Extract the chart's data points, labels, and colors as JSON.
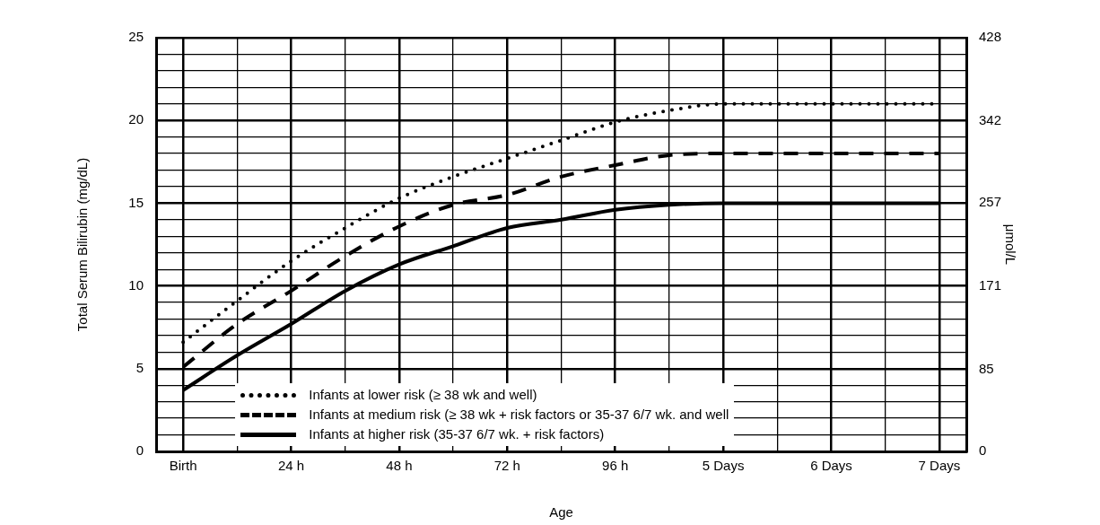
{
  "chart_data": {
    "type": "line",
    "xlabel": "Age",
    "ylabel": "Total Serum Bilirubin (mg/dL)",
    "y2label": "μmol/L",
    "categories": [
      "Birth",
      null,
      "24 h",
      null,
      "48 h",
      null,
      "72 h",
      null,
      "96 h",
      null,
      "5 Days",
      null,
      "6 Days",
      null,
      "7 Days"
    ],
    "series": [
      {
        "name": "Infants at lower risk (≥ 38 wk and well)",
        "color": "#000000",
        "line_style": "dotted",
        "values": [
          6.6,
          9.1,
          11.5,
          13.5,
          15.3,
          16.6,
          17.7,
          18.8,
          19.9,
          20.6,
          21,
          21,
          21,
          21,
          21
        ]
      },
      {
        "name": "Infants at medium risk (≥ 38 wk + risk factors or 35-37 6/7 wk. and well",
        "color": "#000000",
        "line_style": "dashed",
        "values": [
          5.1,
          7.7,
          9.7,
          11.8,
          13.6,
          14.9,
          15.5,
          16.6,
          17.3,
          17.9,
          18,
          18,
          18,
          18,
          18
        ]
      },
      {
        "name": "Infants at higher risk (35-37 6/7 wk. + risk factors)",
        "color": "#000000",
        "line_style": "solid",
        "values": [
          3.7,
          5.8,
          7.7,
          9.7,
          11.3,
          12.4,
          13.5,
          14,
          14.6,
          14.9,
          15,
          15,
          15,
          15,
          15
        ]
      }
    ],
    "ylim": [
      0,
      25
    ],
    "yticks": [
      0,
      {
        "value": 1,
        "label": null
      },
      {
        "value": 2,
        "label": null
      },
      {
        "value": 3,
        "label": null
      },
      {
        "value": 4,
        "label": null
      },
      5,
      {
        "value": 6,
        "label": null
      },
      {
        "value": 7,
        "label": null
      },
      {
        "value": 8,
        "label": null
      },
      {
        "value": 9,
        "label": null
      },
      10,
      {
        "value": 11,
        "label": null
      },
      {
        "value": 12,
        "label": null
      },
      {
        "value": 13,
        "label": null
      },
      {
        "value": 14,
        "label": null
      },
      15,
      {
        "value": 16,
        "label": null
      },
      {
        "value": 17,
        "label": null
      },
      {
        "value": 18,
        "label": null
      },
      {
        "value": 19,
        "label": null
      },
      20,
      {
        "value": 21,
        "label": null
      },
      {
        "value": 22,
        "label": null
      },
      {
        "value": 23,
        "label": null
      },
      {
        "value": 24,
        "label": null
      },
      25
    ],
    "y2lim": [
      0,
      428
    ],
    "y2ticks": [
      0,
      85,
      171,
      257,
      342,
      428
    ],
    "grid": true,
    "legend": "bottom",
    "marker": "none"
  }
}
